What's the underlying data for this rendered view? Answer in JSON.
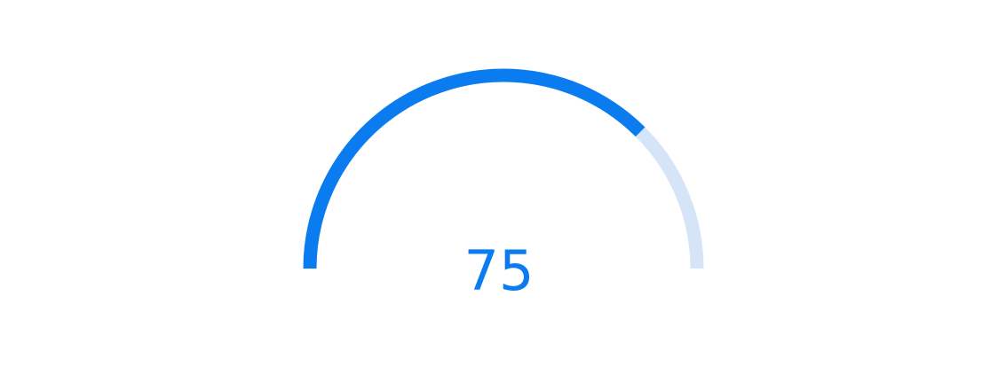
{
  "gauge": {
    "value": "75",
    "fraction": 0.75,
    "colors": {
      "track": "#d6e4f7",
      "fill": "#0a7cef",
      "text": "#0a7cef"
    }
  }
}
